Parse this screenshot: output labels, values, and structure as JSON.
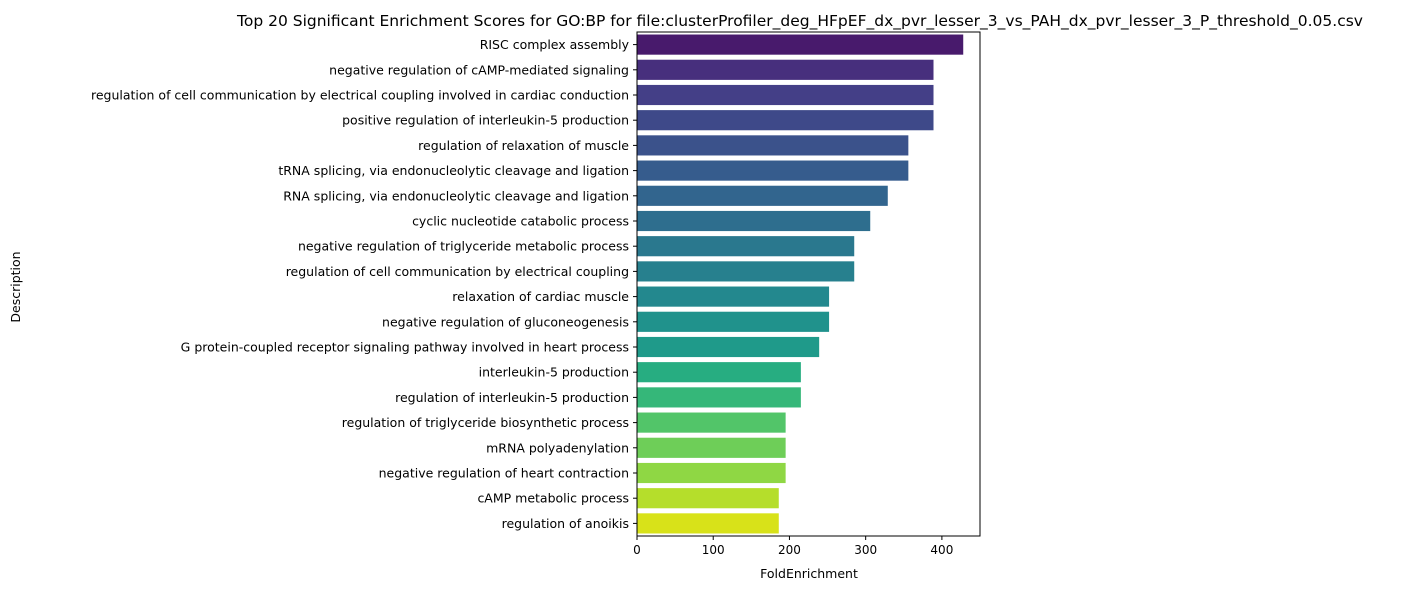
{
  "chart_data": {
    "type": "bar",
    "orientation": "horizontal",
    "title": "Top 20 Significant Enrichment Scores for GO:BP for file:clusterProfiler_deg_HFpEF_dx_pvr_lesser_3_vs_PAH_dx_pvr_lesser_3_P_threshold_0.05.csv",
    "xlabel": "FoldEnrichment",
    "ylabel": "Description",
    "xlim": [
      0,
      450
    ],
    "xticks": [
      0,
      100,
      200,
      300,
      400
    ],
    "grid": false,
    "legend": "none",
    "colormap": "viridis",
    "categories": [
      "RISC complex assembly",
      "negative regulation of cAMP-mediated signaling",
      "regulation of cell communication by electrical coupling involved in cardiac conduction",
      "positive regulation of interleukin-5 production",
      "regulation of relaxation of muscle",
      "tRNA splicing, via endonucleolytic cleavage and ligation",
      "RNA splicing, via endonucleolytic cleavage and ligation",
      "cyclic nucleotide catabolic process",
      "negative regulation of triglyceride metabolic process",
      "regulation of cell communication by electrical coupling",
      "relaxation of cardiac muscle",
      "negative regulation of gluconeogenesis",
      "G protein-coupled receptor signaling pathway involved in heart process",
      "interleukin-5 production",
      "regulation of interleukin-5 production",
      "regulation of triglyceride biosynthetic process",
      "mRNA polyadenylation",
      "negative regulation of heart contraction",
      "cAMP metabolic process",
      "regulation of anoikis"
    ],
    "values": [
      428,
      389,
      389,
      389,
      356,
      356,
      329,
      306,
      285,
      285,
      252,
      252,
      239,
      215,
      215,
      195,
      195,
      195,
      186,
      186
    ],
    "colors": [
      "#481a6c",
      "#472f7d",
      "#443f87",
      "#3e4989",
      "#3b528b",
      "#365c8d",
      "#32658e",
      "#2e6e8e",
      "#2a788e",
      "#27808e",
      "#23888e",
      "#20928c",
      "#1f9a8a",
      "#27ad81",
      "#35b779",
      "#52c569",
      "#6ece58",
      "#8fd744",
      "#b5de2b",
      "#d8e219"
    ]
  }
}
